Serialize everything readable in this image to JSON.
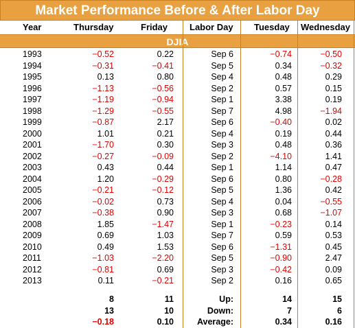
{
  "title": "Market Performance Before & After Labor Day",
  "headers": {
    "year": "Year",
    "thursday": "Thursday",
    "friday": "Friday",
    "labor_day": "Labor Day",
    "tuesday": "Tuesday",
    "wednesday": "Wednesday"
  },
  "section": "DJIA",
  "rows": [
    {
      "year": "1993",
      "thu": "−0.52",
      "fri": "0.22",
      "labor": "Sep 6",
      "tue": "−0.74",
      "wed": "−0.50"
    },
    {
      "year": "1994",
      "thu": "−0.31",
      "fri": "−0.41",
      "labor": "Sep 5",
      "tue": "0.34",
      "wed": "−0.32"
    },
    {
      "year": "1995",
      "thu": "0.13",
      "fri": "0.80",
      "labor": "Sep 4",
      "tue": "0.48",
      "wed": "0.29"
    },
    {
      "year": "1996",
      "thu": "−1.13",
      "fri": "−0.56",
      "labor": "Sep 2",
      "tue": "0.57",
      "wed": "0.15"
    },
    {
      "year": "1997",
      "thu": "−1.19",
      "fri": "−0.94",
      "labor": "Sep 1",
      "tue": "3.38",
      "wed": "0.19"
    },
    {
      "year": "1998",
      "thu": "−1.29",
      "fri": "−0.55",
      "labor": "Sep 7",
      "tue": "4.98",
      "wed": "−1.94"
    },
    {
      "year": "1999",
      "thu": "−0.87",
      "fri": "2.17",
      "labor": "Sep 6",
      "tue": "−0.40",
      "wed": "0.02"
    },
    {
      "year": "2000",
      "thu": "1.01",
      "fri": "0.21",
      "labor": "Sep 4",
      "tue": "0.19",
      "wed": "0.44"
    },
    {
      "year": "2001",
      "thu": "−1.70",
      "fri": "0.30",
      "labor": "Sep 3",
      "tue": "0.48",
      "wed": "0.36"
    },
    {
      "year": "2002",
      "thu": "−0.27",
      "fri": "−0.09",
      "labor": "Sep 2",
      "tue": "−4.10",
      "wed": "1.41"
    },
    {
      "year": "2003",
      "thu": "0.43",
      "fri": "0.44",
      "labor": "Sep 1",
      "tue": "1.14",
      "wed": "0.47"
    },
    {
      "year": "2004",
      "thu": "1.20",
      "fri": "−0.29",
      "labor": "Sep 6",
      "tue": "0.80",
      "wed": "−0.28"
    },
    {
      "year": "2005",
      "thu": "−0.21",
      "fri": "−0.12",
      "labor": "Sep 5",
      "tue": "1.36",
      "wed": "0.42"
    },
    {
      "year": "2006",
      "thu": "−0.02",
      "fri": "0.73",
      "labor": "Sep 4",
      "tue": "0.04",
      "wed": "−0.55"
    },
    {
      "year": "2007",
      "thu": "−0.38",
      "fri": "0.90",
      "labor": "Sep 3",
      "tue": "0.68",
      "wed": "−1.07"
    },
    {
      "year": "2008",
      "thu": "1.85",
      "fri": "−1.47",
      "labor": "Sep 1",
      "tue": "−0.23",
      "wed": "0.14"
    },
    {
      "year": "2009",
      "thu": "0.69",
      "fri": "1.03",
      "labor": "Sep 7",
      "tue": "0.59",
      "wed": "0.53"
    },
    {
      "year": "2010",
      "thu": "0.49",
      "fri": "1.53",
      "labor": "Sep 6",
      "tue": "−1.31",
      "wed": "0.45"
    },
    {
      "year": "2011",
      "thu": "−1.03",
      "fri": "−2.20",
      "labor": "Sep 5",
      "tue": "−0.90",
      "wed": "2.47"
    },
    {
      "year": "2012",
      "thu": "−0.81",
      "fri": "0.69",
      "labor": "Sep 3",
      "tue": "−0.42",
      "wed": "0.09"
    },
    {
      "year": "2013",
      "thu": "0.11",
      "fri": "−0.21",
      "labor": "Sep 2",
      "tue": "0.16",
      "wed": "0.65"
    }
  ],
  "summary": [
    {
      "label": "Up:",
      "thu": "8",
      "fri": "11",
      "tue": "14",
      "wed": "15"
    },
    {
      "label": "Down:",
      "thu": "13",
      "fri": "10",
      "tue": "7",
      "wed": "6"
    },
    {
      "label": "Average:",
      "thu": "−0.18",
      "fri": "0.10",
      "tue": "0.34",
      "wed": "0.16"
    }
  ],
  "colors": {
    "header_bg": "#e8a040",
    "negative": "#e00000",
    "positive": "#000000"
  }
}
